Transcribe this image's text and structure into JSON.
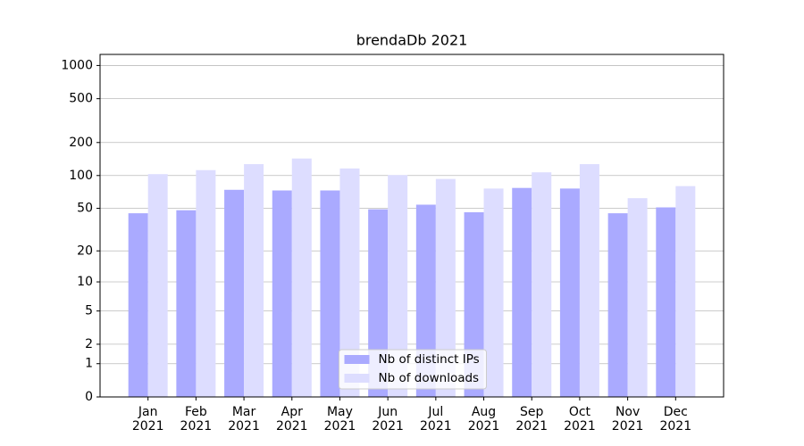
{
  "chart_data": {
    "type": "bar",
    "title": "brendaDb 2021",
    "categories": [
      "Jan\n2021",
      "Feb\n2021",
      "Mar\n2021",
      "Apr\n2021",
      "May\n2021",
      "Jun\n2021",
      "Jul\n2021",
      "Aug\n2021",
      "Sep\n2021",
      "Oct\n2021",
      "Nov\n2021",
      "Dec\n2021"
    ],
    "series": [
      {
        "name": "Nb of distinct IPs",
        "color": "#aaaaff",
        "values": [
          45,
          48,
          74,
          73,
          73,
          49,
          54,
          46,
          77,
          76,
          45,
          51
        ]
      },
      {
        "name": "Nb of downloads",
        "color": "#ddddff",
        "values": [
          103,
          112,
          127,
          143,
          116,
          101,
          93,
          76,
          107,
          127,
          62,
          80
        ]
      }
    ],
    "yscale": "symlog",
    "ylim": [
      0,
      1260
    ],
    "yticks": [
      0,
      1,
      2,
      5,
      10,
      20,
      50,
      100,
      200,
      500,
      1000
    ],
    "grid": true,
    "legend": "lower center"
  }
}
